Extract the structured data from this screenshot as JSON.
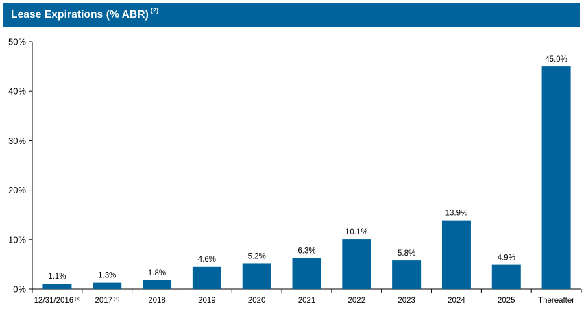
{
  "header": {
    "title": "Lease Expirations (% ABR)",
    "title_footnote": "(2)",
    "background_color": "#00639b"
  },
  "chart_data": {
    "type": "bar",
    "title": "Lease Expirations (% ABR)",
    "xlabel": "",
    "ylabel": "",
    "ylim": [
      0,
      50
    ],
    "yticks": [
      0,
      10,
      20,
      30,
      40,
      50
    ],
    "ytick_labels": [
      "0%",
      "10%",
      "20%",
      "30%",
      "40%",
      "50%"
    ],
    "categories": [
      "12/31/2016",
      "2017",
      "2018",
      "2019",
      "2020",
      "2021",
      "2022",
      "2023",
      "2024",
      "2025",
      "Thereafter"
    ],
    "category_footnotes": [
      "(3)",
      "(4)",
      "",
      "",
      "",
      "",
      "",
      "",
      "",
      "",
      ""
    ],
    "values": [
      1.1,
      1.3,
      1.8,
      4.6,
      5.2,
      6.3,
      10.1,
      5.8,
      13.9,
      4.9,
      45.0
    ],
    "value_labels": [
      "1.1%",
      "1.3%",
      "1.8%",
      "4.6%",
      "5.2%",
      "6.3%",
      "10.1%",
      "5.8%",
      "13.9%",
      "4.9%",
      "45.0%"
    ],
    "bar_color": "#00639b",
    "grid": false,
    "legend": "none"
  }
}
